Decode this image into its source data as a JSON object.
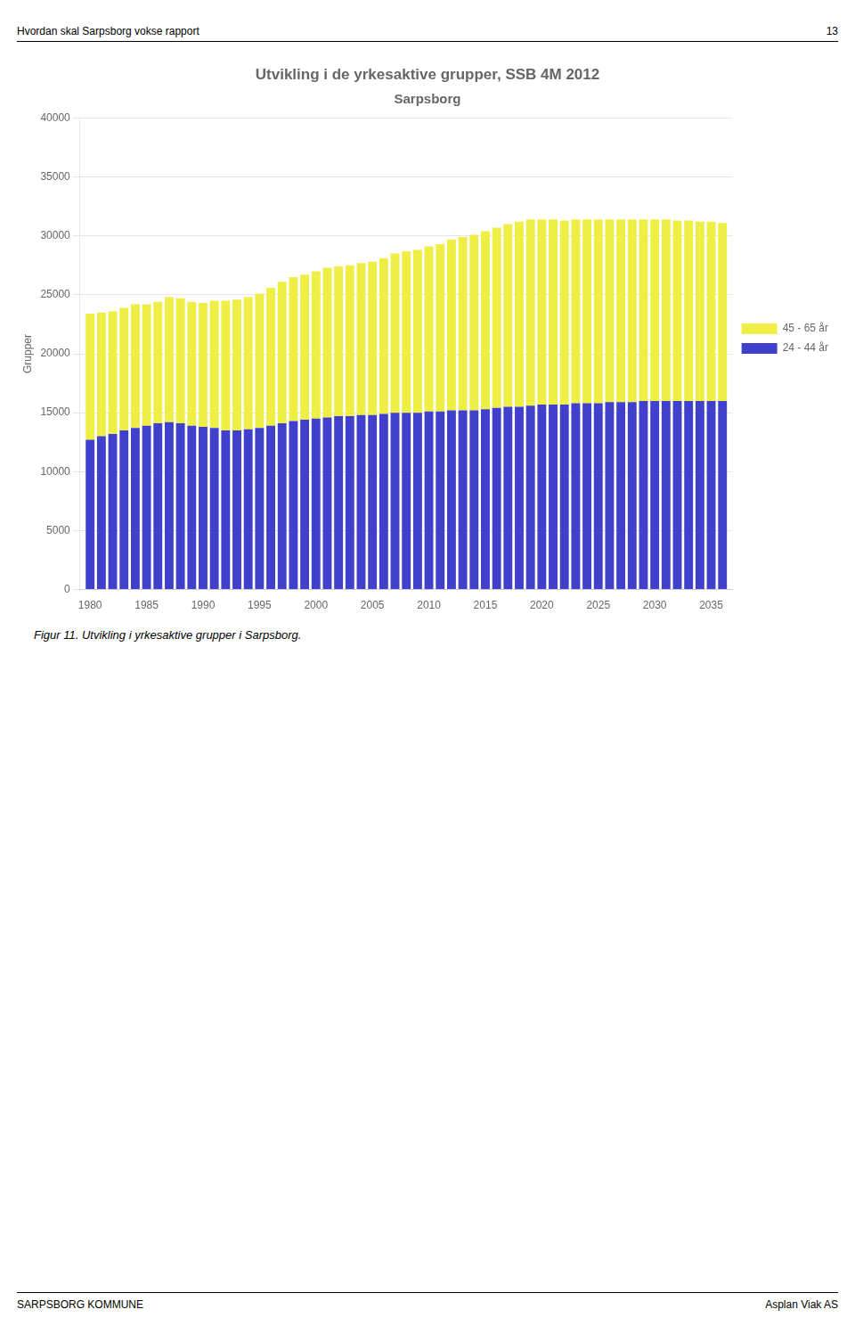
{
  "chart_data": {
    "type": "bar",
    "stacked": true,
    "title": "Utvikling i de yrkesaktive grupper, SSB 4M 2012",
    "subtitle": "Sarpsborg",
    "y_label": "Grupper",
    "annotations": [
      "Hvordan skal Sarpsborg vokse rapport",
      "13",
      "SARPSBORG KOMMUNE",
      "Asplan Viak AS",
      "Figur 11. Utvikling i yrkesaktive grupper i Sarpsborg."
    ],
    "x": [
      1980,
      1981,
      1982,
      1983,
      1984,
      1985,
      1986,
      1987,
      1988,
      1989,
      1990,
      1991,
      1992,
      1993,
      1994,
      1995,
      1996,
      1997,
      1998,
      1999,
      2000,
      2001,
      2002,
      2003,
      2004,
      2005,
      2006,
      2007,
      2008,
      2009,
      2010,
      2011,
      2012,
      2013,
      2014,
      2015,
      2016,
      2017,
      2018,
      2019,
      2020,
      2021,
      2022,
      2023,
      2024,
      2025,
      2026,
      2027,
      2028,
      2029,
      2030,
      2031,
      2032,
      2033,
      2034,
      2035,
      2036
    ],
    "series": [
      {
        "name": "24 - 44 år",
        "color": "#4040CC",
        "values": [
          12700,
          13000,
          13200,
          13500,
          13700,
          13900,
          14100,
          14200,
          14100,
          13900,
          13800,
          13700,
          13500,
          13500,
          13600,
          13700,
          13900,
          14100,
          14300,
          14400,
          14500,
          14600,
          14700,
          14700,
          14800,
          14800,
          14900,
          15000,
          15000,
          15000,
          15100,
          15100,
          15200,
          15200,
          15200,
          15300,
          15400,
          15500,
          15500,
          15600,
          15700,
          15700,
          15700,
          15800,
          15800,
          15800,
          15900,
          15900,
          15900,
          16000,
          16000,
          16000,
          16000,
          16000,
          16000,
          16000,
          16000
        ]
      },
      {
        "name": "45 - 65 år",
        "color": "#EEEE44",
        "values": [
          10700,
          10500,
          10400,
          10400,
          10500,
          10300,
          10300,
          10600,
          10600,
          10500,
          10500,
          10800,
          11000,
          11100,
          11200,
          11400,
          11700,
          12000,
          12200,
          12300,
          12500,
          12700,
          12700,
          12800,
          12900,
          13000,
          13200,
          13500,
          13700,
          13800,
          14000,
          14200,
          14500,
          14700,
          14900,
          15100,
          15300,
          15500,
          15700,
          15800,
          15700,
          15700,
          15600,
          15600,
          15600,
          15600,
          15500,
          15500,
          15500,
          15400,
          15400,
          15400,
          15300,
          15300,
          15200,
          15200,
          15100
        ]
      }
    ],
    "xlim": [
      1979.1,
      2036.9
    ],
    "xticks": [
      1980,
      1985,
      1990,
      1995,
      2000,
      2005,
      2010,
      2015,
      2020,
      2025,
      2030,
      2035
    ],
    "ylim": [
      0,
      40000
    ],
    "yticks": [
      0,
      5000,
      10000,
      15000,
      20000,
      25000,
      30000,
      35000,
      40000
    ],
    "grid": true,
    "legend": "right"
  }
}
